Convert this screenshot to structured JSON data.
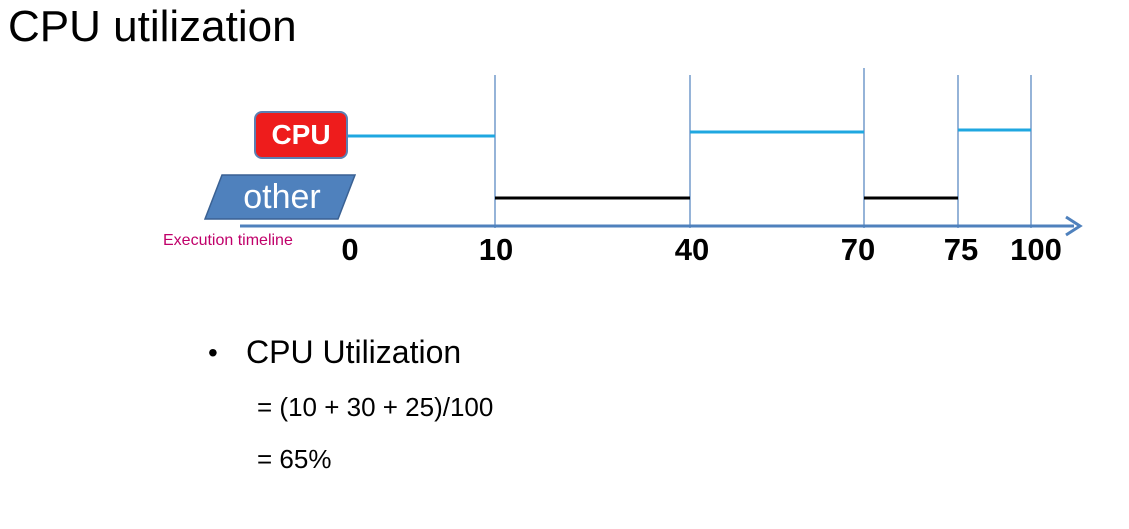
{
  "title": "CPU utilization",
  "labels": {
    "cpu": "CPU",
    "other": "other",
    "timeline": "Execution timeline"
  },
  "ticks": [
    "0",
    "10",
    "40",
    "70",
    "75",
    "100"
  ],
  "segments": {
    "cpu": [
      [
        0,
        10
      ],
      [
        40,
        70
      ],
      [
        75,
        100
      ]
    ],
    "other": [
      [
        10,
        40
      ],
      [
        70,
        75
      ]
    ]
  },
  "colors": {
    "cpu_box": "#ee1c1c",
    "other_box": "#4f81bd",
    "cpu_line": "#1fa7e0",
    "other_line": "#000000",
    "axis": "#4f81bd",
    "timeline_label": "#c0006a"
  },
  "bullets": {
    "heading": "CPU Utilization",
    "line1": "= (10 + 30 + 25)/100",
    "line2": "= 65%"
  }
}
